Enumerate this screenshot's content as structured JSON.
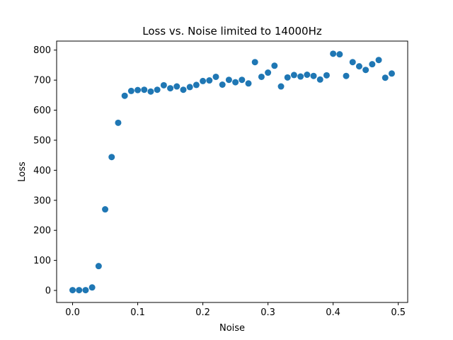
{
  "chart_data": {
    "type": "scatter",
    "title": "Loss vs. Noise limited to 14000Hz",
    "xlabel": "Noise",
    "ylabel": "Loss",
    "xlim": [
      -0.0245,
      0.5145
    ],
    "ylim": [
      -40,
      830
    ],
    "xticks": [
      0.0,
      0.1,
      0.2,
      0.3,
      0.4,
      0.5
    ],
    "xtick_labels": [
      "0.0",
      "0.1",
      "0.2",
      "0.3",
      "0.4",
      "0.5"
    ],
    "yticks": [
      0,
      100,
      200,
      300,
      400,
      500,
      600,
      700,
      800
    ],
    "ytick_labels": [
      "0",
      "100",
      "200",
      "300",
      "400",
      "500",
      "600",
      "700",
      "800"
    ],
    "grid": false,
    "color": "#1f77b4",
    "x": [
      0.0,
      0.01,
      0.02,
      0.03,
      0.04,
      0.05,
      0.06,
      0.07,
      0.08,
      0.09,
      0.1,
      0.11,
      0.12,
      0.13,
      0.14,
      0.15,
      0.16,
      0.17,
      0.18,
      0.19,
      0.2,
      0.21,
      0.22,
      0.23,
      0.24,
      0.25,
      0.26,
      0.27,
      0.28,
      0.29,
      0.3,
      0.31,
      0.32,
      0.33,
      0.34,
      0.35,
      0.36,
      0.37,
      0.38,
      0.39,
      0.4,
      0.41,
      0.42,
      0.43,
      0.44,
      0.45,
      0.46,
      0.47,
      0.48,
      0.49
    ],
    "y": [
      1,
      1,
      1,
      10,
      81,
      270,
      444,
      558,
      648,
      664,
      667,
      668,
      662,
      668,
      683,
      673,
      679,
      668,
      677,
      684,
      697,
      699,
      711,
      685,
      701,
      693,
      701,
      689,
      760,
      711,
      725,
      748,
      679,
      709,
      717,
      712,
      718,
      714,
      702,
      716,
      788,
      786,
      714,
      760,
      746,
      734,
      753,
      767,
      708,
      722
    ]
  }
}
